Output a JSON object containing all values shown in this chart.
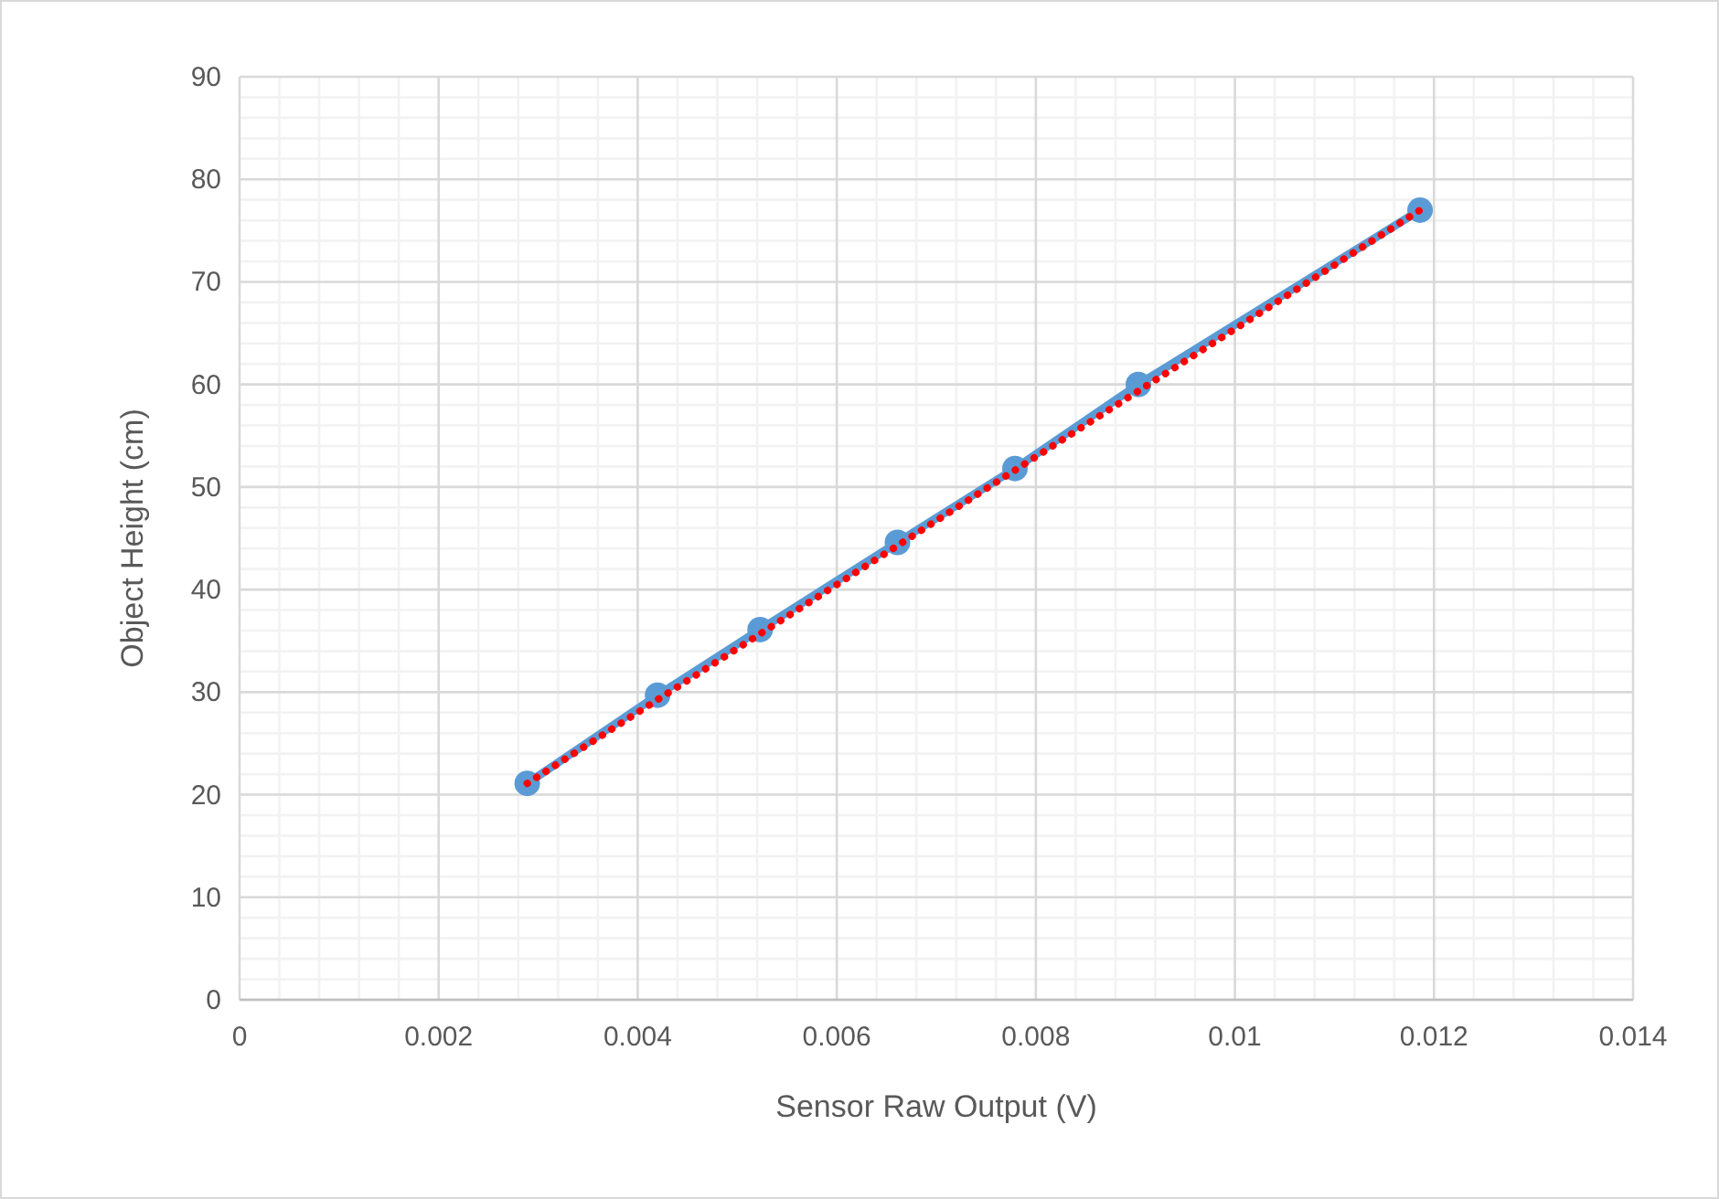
{
  "chart_data": {
    "type": "line",
    "xlabel": "Sensor Raw Output (V)",
    "ylabel": "Object Height (cm)",
    "xlim": [
      0,
      0.014
    ],
    "xticks": [
      0,
      0.002,
      0.004,
      0.006,
      0.008,
      0.01,
      0.012,
      0.014
    ],
    "ylim": [
      0,
      90
    ],
    "yticks": [
      0,
      10,
      20,
      30,
      40,
      50,
      60,
      70,
      80,
      90
    ],
    "grid": true,
    "series": [
      {
        "color": "#5b9bd5",
        "marker": "circle",
        "line_style": "solid",
        "x": [
          0.00289,
          0.0042,
          0.00523,
          0.00661,
          0.00779,
          0.00903,
          0.01186
        ],
        "values": [
          21.1,
          29.7,
          36.1,
          44.6,
          51.8,
          60,
          77
        ]
      },
      {
        "type": "line",
        "color": "#ff0000",
        "marker": "none",
        "line_style": "dotted",
        "x": [
          0.00289,
          0.01186
        ],
        "values": [
          21.1,
          77
        ]
      }
    ]
  }
}
